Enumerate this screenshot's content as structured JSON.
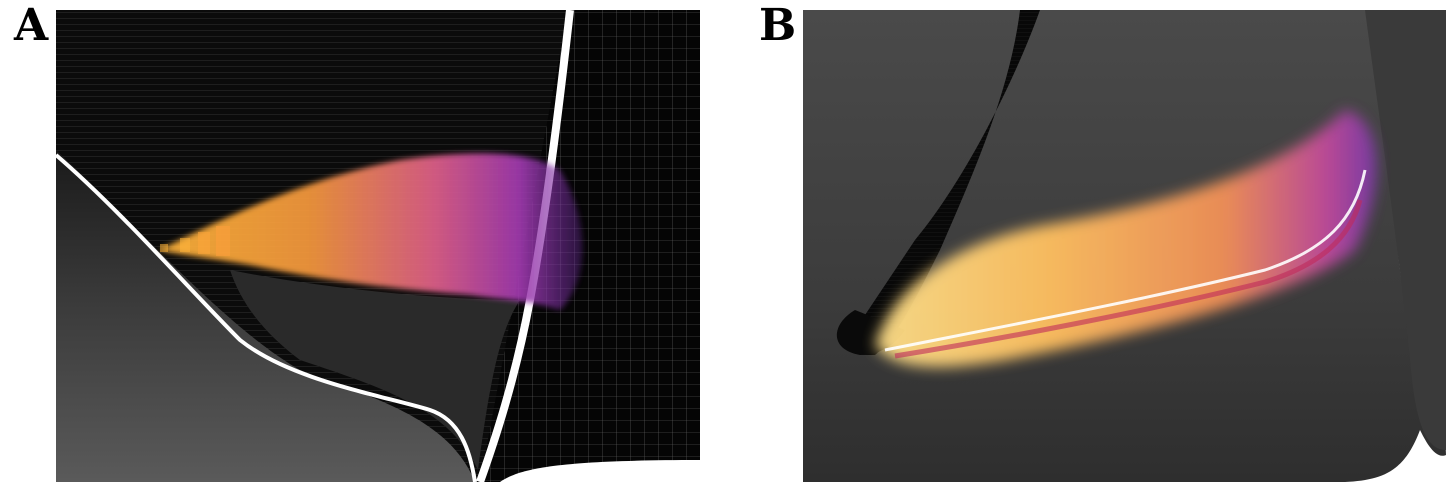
{
  "figure": {
    "panels": [
      {
        "id": "A",
        "label": "A"
      },
      {
        "id": "B",
        "label": "B"
      }
    ]
  },
  "colors": {
    "background": "#ffffff",
    "mesh_dark": "#0b0b0b",
    "mesh_grey": "#3a3a3a",
    "mesh_light": "#5c5c5c",
    "highlight_white": "#ffffff",
    "plume_yellow": "#ffd36b",
    "plume_orange": "#f79a3c",
    "plume_magenta": "#c83a8e",
    "plume_purple": "#6a2c9c"
  }
}
